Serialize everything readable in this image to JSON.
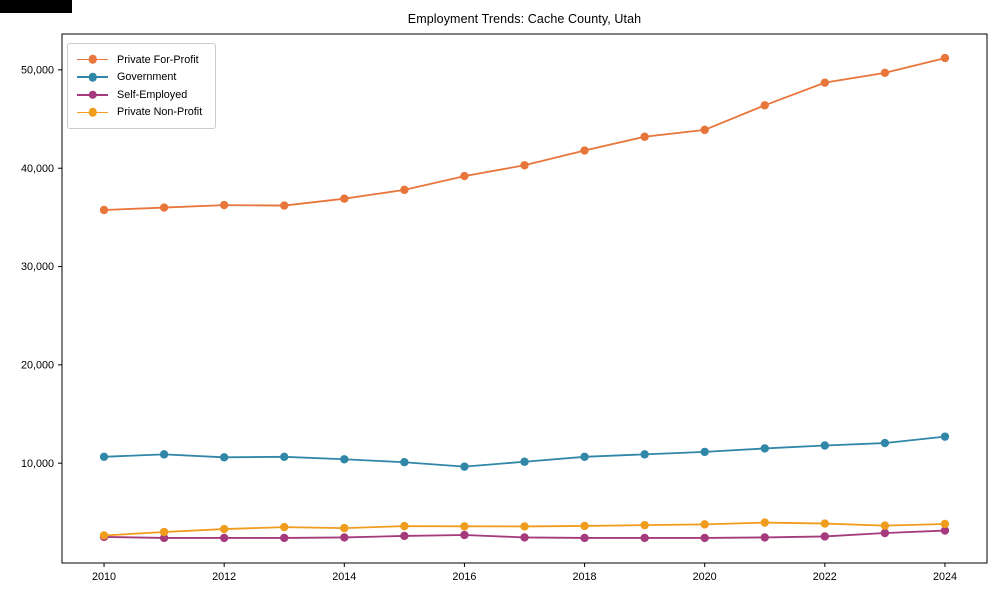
{
  "title": "Employment Trends: Cache County, Utah",
  "chart_data": {
    "type": "line",
    "title": "Employment Trends: Cache County, Utah",
    "xlabel": "",
    "ylabel": "",
    "grid": false,
    "legend_position": "upper-left",
    "x": [
      2010,
      2011,
      2012,
      2013,
      2014,
      2015,
      2016,
      2017,
      2018,
      2019,
      2020,
      2021,
      2022,
      2023,
      2024
    ],
    "series": [
      {
        "name": "Private For-Profit",
        "color": "#E8763B",
        "values": [
          35750,
          36000,
          36250,
          36200,
          36900,
          37800,
          39200,
          40300,
          41800,
          43200,
          43900,
          46400,
          48700,
          49700,
          51200
        ]
      },
      {
        "name": "Government",
        "color": "#3187A8",
        "values": [
          10650,
          10900,
          10600,
          10650,
          10400,
          10100,
          9650,
          10150,
          10650,
          10900,
          11150,
          11500,
          11800,
          12050,
          12700
        ]
      },
      {
        "name": "Self-Employed",
        "color": "#A53A7D",
        "values": [
          2500,
          2400,
          2400,
          2400,
          2450,
          2600,
          2700,
          2450,
          2400,
          2400,
          2400,
          2450,
          2550,
          2900,
          3150
        ]
      },
      {
        "name": "Private Non-Profit",
        "color": "#F09C1C",
        "values": [
          2650,
          3000,
          3300,
          3500,
          3400,
          3600,
          3580,
          3570,
          3620,
          3700,
          3780,
          3960,
          3860,
          3650,
          3820
        ]
      }
    ],
    "xticks": [
      2010,
      2012,
      2014,
      2016,
      2018,
      2020,
      2022,
      2024
    ],
    "xtick_labels": [
      "2010",
      "2012",
      "2014",
      "2016",
      "2018",
      "2020",
      "2022",
      "2024"
    ],
    "yticks": [
      10000,
      20000,
      30000,
      40000,
      50000
    ],
    "ytick_labels": [
      "10,000",
      "20,000",
      "30,000",
      "40,000",
      "50,000"
    ],
    "xlim": [
      2009.3,
      2024.7
    ],
    "ylim": [
      -150,
      53650
    ]
  },
  "style": {
    "spine_color": "#000000",
    "tick_color": "#000000",
    "background": "#ffffff"
  }
}
